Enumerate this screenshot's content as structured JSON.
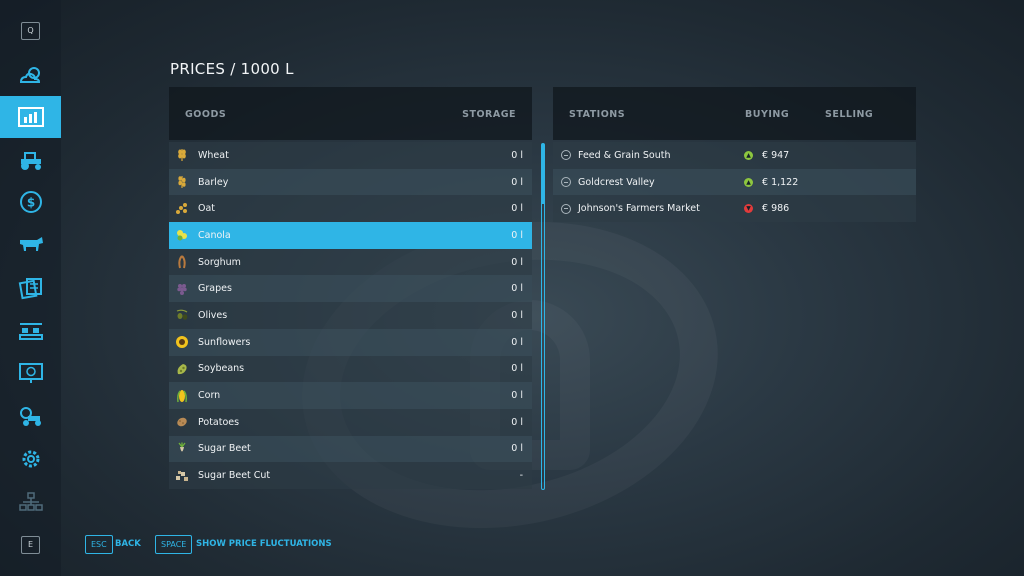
{
  "title": "PRICES / 1000 L",
  "sidebar": {
    "top_key": "Q",
    "bottom_key": "E",
    "items": [
      {
        "name": "weather",
        "icon": "weather-icon"
      },
      {
        "name": "prices",
        "icon": "price-chart-icon",
        "active": true
      },
      {
        "name": "vehicles",
        "icon": "tractor-icon"
      },
      {
        "name": "finances",
        "icon": "dollar-icon"
      },
      {
        "name": "animals",
        "icon": "cow-icon"
      },
      {
        "name": "contracts",
        "icon": "contracts-icon"
      },
      {
        "name": "production",
        "icon": "production-icon"
      },
      {
        "name": "statistics",
        "icon": "statistics-icon"
      },
      {
        "name": "garage",
        "icon": "garage-icon"
      },
      {
        "name": "settings",
        "icon": "gear-icon"
      },
      {
        "name": "multiplayer",
        "icon": "network-icon"
      }
    ]
  },
  "goods_header": {
    "goods": "GOODS",
    "storage": "STORAGE"
  },
  "stations_header": {
    "stations": "STATIONS",
    "buying": "BUYING",
    "selling": "SELLING"
  },
  "goods": [
    {
      "name": "Wheat",
      "storage": "0 l",
      "icon": "wheat-icon"
    },
    {
      "name": "Barley",
      "storage": "0 l",
      "icon": "barley-icon"
    },
    {
      "name": "Oat",
      "storage": "0 l",
      "icon": "oat-icon"
    },
    {
      "name": "Canola",
      "storage": "0 l",
      "icon": "canola-icon",
      "selected": true
    },
    {
      "name": "Sorghum",
      "storage": "0 l",
      "icon": "sorghum-icon"
    },
    {
      "name": "Grapes",
      "storage": "0 l",
      "icon": "grapes-icon"
    },
    {
      "name": "Olives",
      "storage": "0 l",
      "icon": "olives-icon"
    },
    {
      "name": "Sunflowers",
      "storage": "0 l",
      "icon": "sunflower-icon"
    },
    {
      "name": "Soybeans",
      "storage": "0 l",
      "icon": "soybeans-icon"
    },
    {
      "name": "Corn",
      "storage": "0 l",
      "icon": "corn-icon"
    },
    {
      "name": "Potatoes",
      "storage": "0 l",
      "icon": "potato-icon"
    },
    {
      "name": "Sugar Beet",
      "storage": "0 l",
      "icon": "sugar-beet-icon"
    },
    {
      "name": "Sugar Beet Cut",
      "storage": "-",
      "icon": "sugar-beet-cut-icon"
    }
  ],
  "stations": [
    {
      "name": "Feed & Grain South",
      "trend": "up",
      "trend_color": "#8dc63f",
      "price": "€ 947"
    },
    {
      "name": "Goldcrest Valley",
      "trend": "up",
      "trend_color": "#8dc63f",
      "price": "€ 1,122"
    },
    {
      "name": "Johnson's Farmers Market",
      "trend": "down",
      "trend_color": "#e23b3b",
      "price": "€ 986"
    }
  ],
  "footer": {
    "back_key": "ESC",
    "back_label": "BACK",
    "fluct_key": "SPACE",
    "fluct_label": "SHOW PRICE FLUCTUATIONS"
  },
  "colors": {
    "accent": "#2fb5e6",
    "trend_up": "#8dc63f",
    "trend_down": "#e23b3b"
  }
}
